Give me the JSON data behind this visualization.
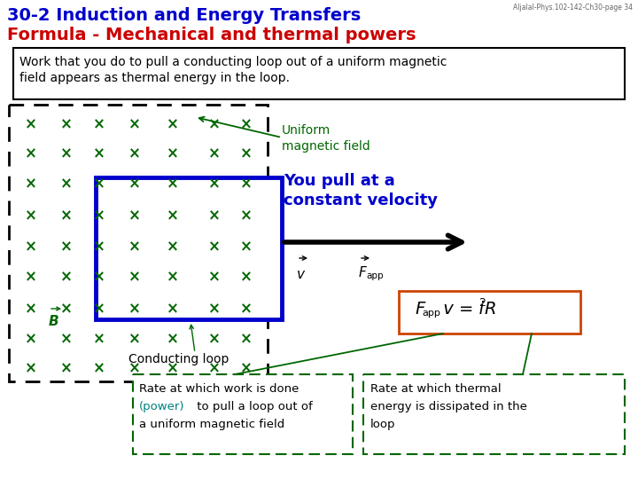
{
  "title_line1": "30-2 Induction and Energy Transfers",
  "title_line2": "Formula - Mechanical and thermal powers",
  "watermark": "Aljalal-Phys.102-142-Ch30-page 34",
  "description_line1": "Work that you do to pull a conducting loop out of a uniform magnetic",
  "description_line2": "field appears as thermal energy in the loop.",
  "uniform_label_line1": "Uniform",
  "uniform_label_line2": "magnetic field",
  "pull_label_line1": "You pull at a",
  "pull_label_line2": "constant velocity",
  "conducting_label": "Conducting loop",
  "box1_line1": "Rate at which work is done",
  "box1_line2a": "(power)",
  "box1_line2b": " to pull a loop out of",
  "box1_line3": "a uniform magnetic field",
  "box2_line1": "Rate at which thermal",
  "box2_line2": "energy is dissipated in the",
  "box2_line3": "loop",
  "color_title1": "#0000cc",
  "color_title2": "#cc0000",
  "color_green": "#006600",
  "color_blue": "#0000cc",
  "color_power": "#008080",
  "color_black": "#000000",
  "color_formula_box": "#cc4400",
  "bg_color": "#ffffff",
  "x_mark_color": "#006600"
}
